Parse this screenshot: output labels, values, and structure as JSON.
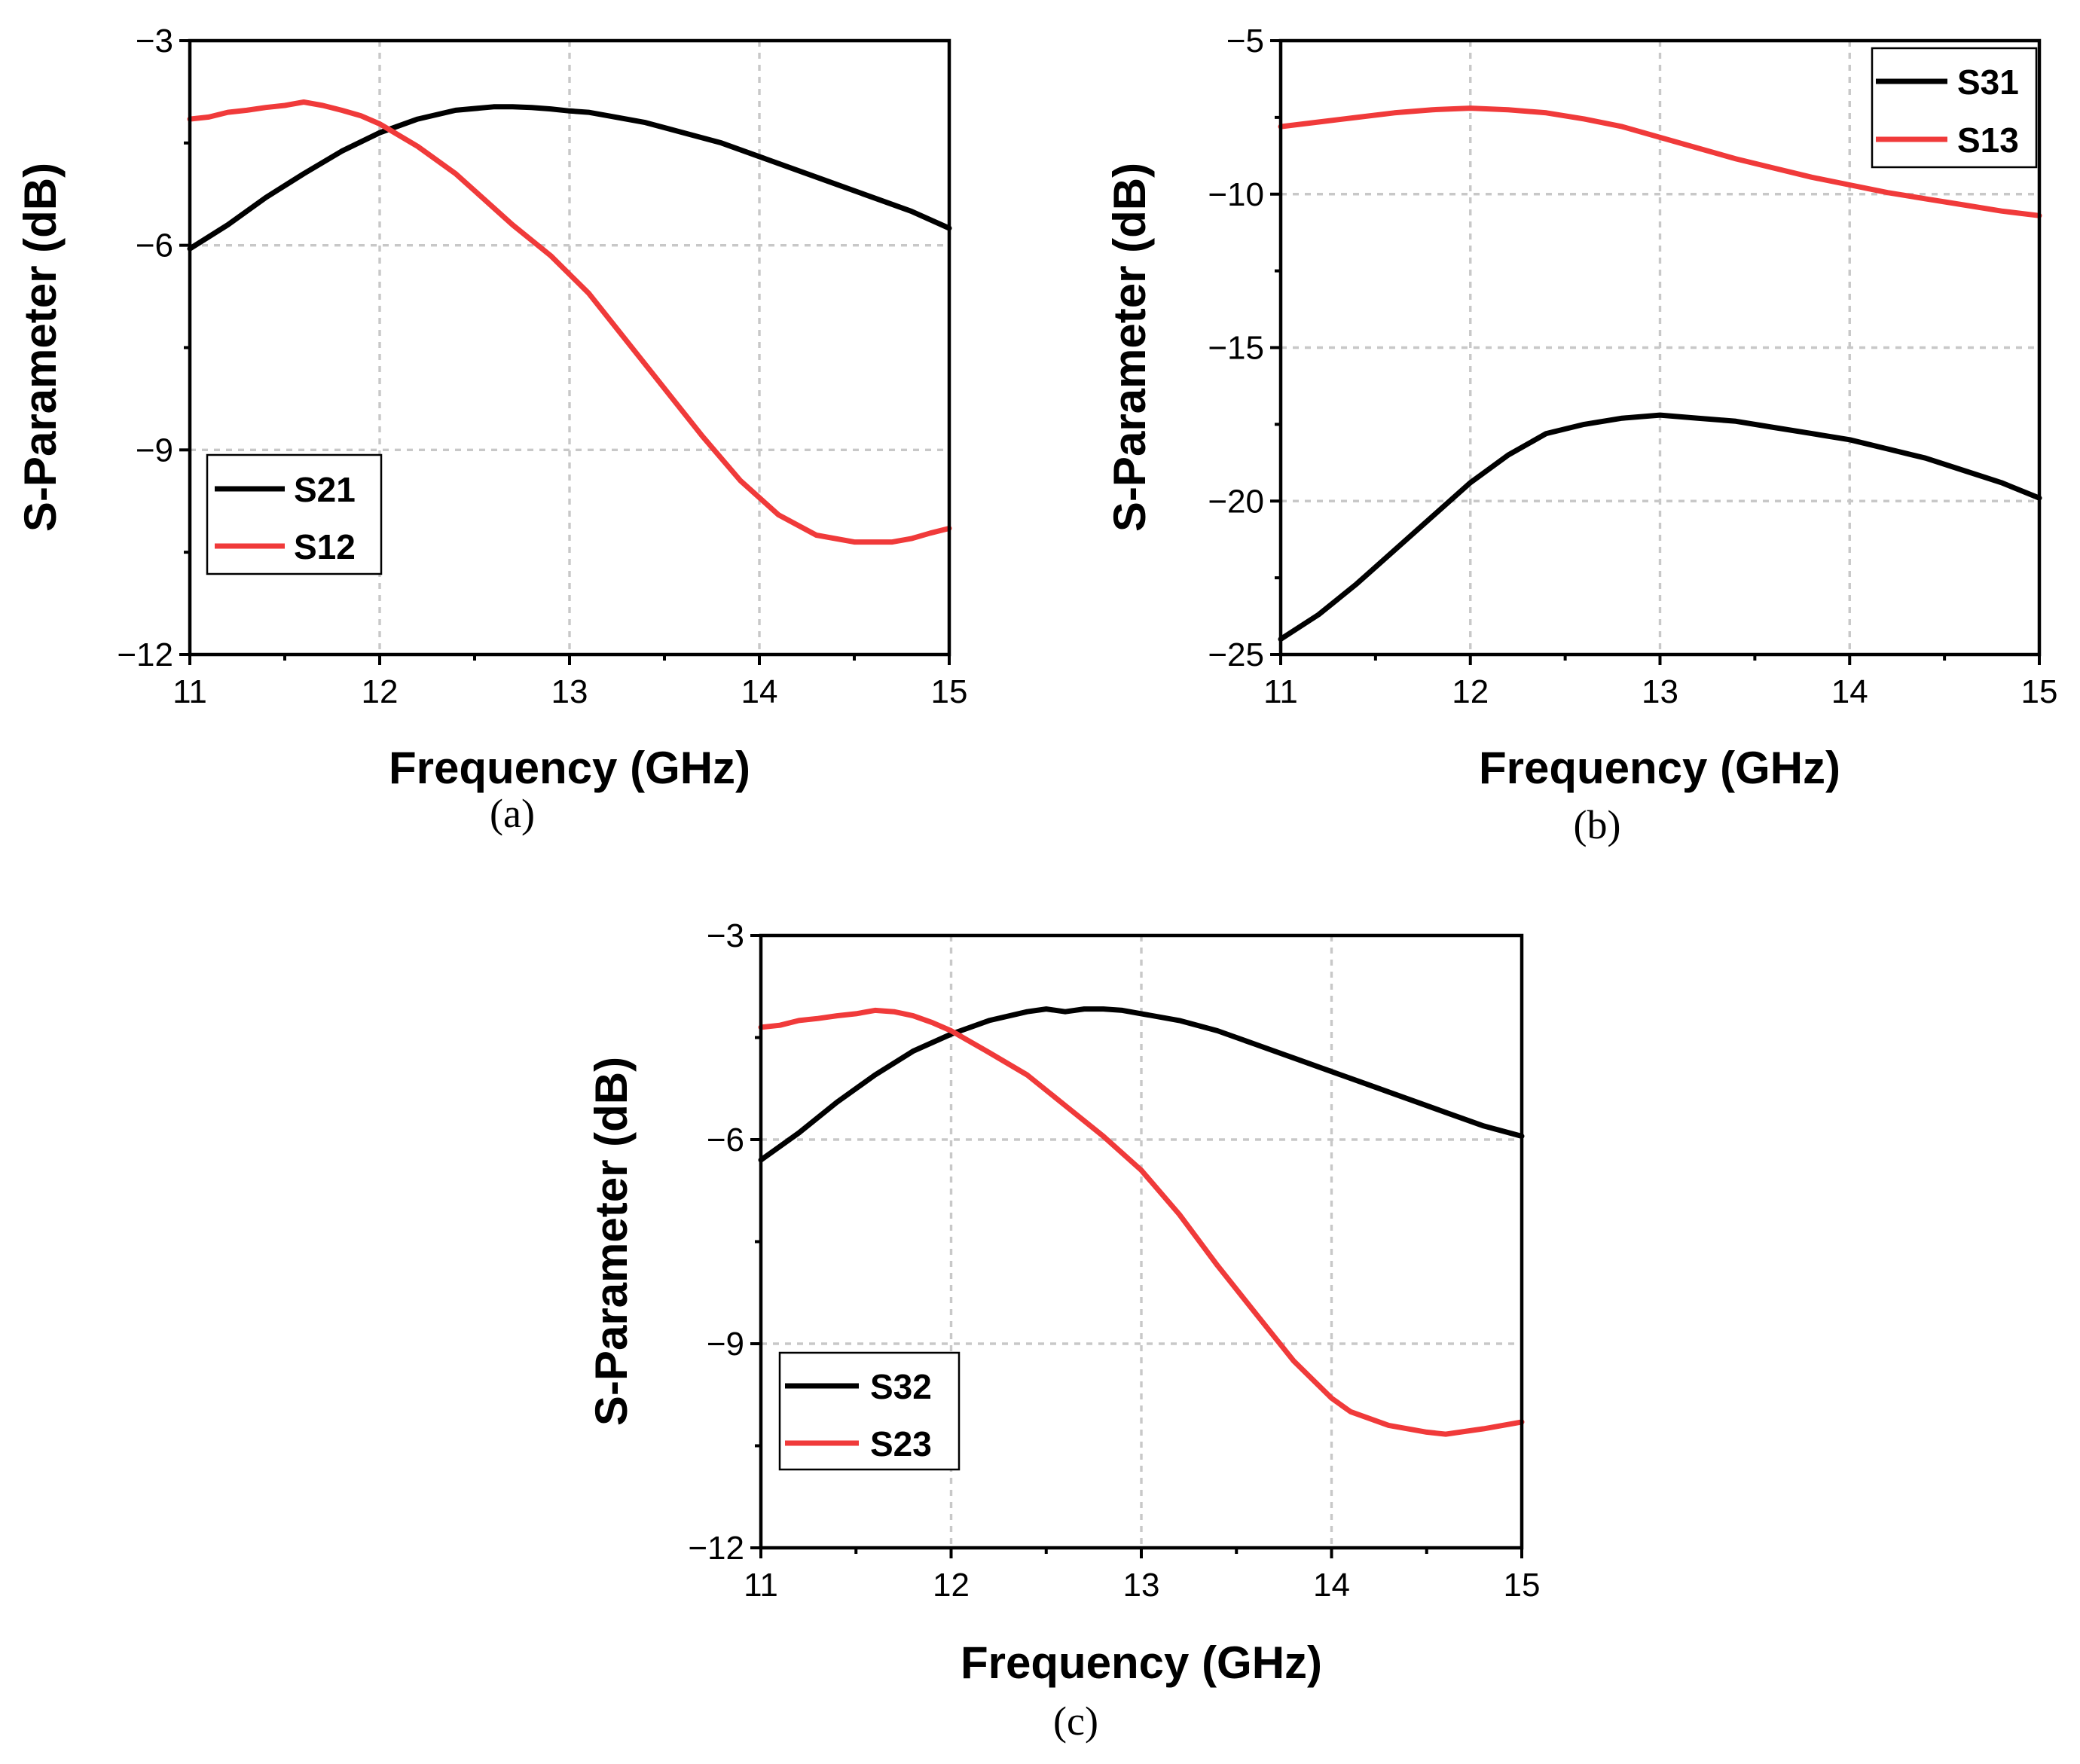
{
  "colors": {
    "series_black": "#000000",
    "series_red": "#f03a3a",
    "grid": "#c8c8c8"
  },
  "chart_data": [
    {
      "type": "line",
      "caption": "(a)",
      "xlabel": "Frequency (GHz)",
      "ylabel": "S-Parameter (dB)",
      "xlim": [
        11,
        15
      ],
      "ylim": [
        -12,
        -3
      ],
      "xticks": [
        11,
        12,
        13,
        14,
        15
      ],
      "yticks": [
        -12,
        -9,
        -6,
        -3
      ],
      "ytick_labels": [
        "−12",
        "−9",
        "−6",
        "−3"
      ],
      "grid": true,
      "legend_position": "bottom-left",
      "series": [
        {
          "name": "S21",
          "color": "#000000",
          "x": [
            11,
            11.2,
            11.4,
            11.6,
            11.8,
            12,
            12.2,
            12.4,
            12.6,
            12.7,
            12.8,
            12.9,
            13,
            13.1,
            13.2,
            13.4,
            13.6,
            13.8,
            14,
            14.2,
            14.4,
            14.6,
            14.8,
            15
          ],
          "y": [
            -6.05,
            -5.7,
            -5.3,
            -4.95,
            -4.62,
            -4.35,
            -4.15,
            -4.02,
            -3.97,
            -3.97,
            -3.98,
            -4.0,
            -4.03,
            -4.05,
            -4.1,
            -4.2,
            -4.35,
            -4.5,
            -4.7,
            -4.9,
            -5.1,
            -5.3,
            -5.5,
            -5.75
          ]
        },
        {
          "name": "S12",
          "color": "#f03a3a",
          "x": [
            11,
            11.1,
            11.2,
            11.3,
            11.4,
            11.5,
            11.6,
            11.7,
            11.8,
            11.9,
            12,
            12.2,
            12.4,
            12.5,
            12.6,
            12.7,
            12.9,
            13.1,
            13.3,
            13.5,
            13.7,
            13.9,
            14.1,
            14.3,
            14.5,
            14.7,
            14.8,
            14.9,
            15
          ],
          "y": [
            -4.15,
            -4.12,
            -4.05,
            -4.02,
            -3.98,
            -3.95,
            -3.9,
            -3.95,
            -4.02,
            -4.1,
            -4.22,
            -4.55,
            -4.95,
            -5.2,
            -5.45,
            -5.7,
            -6.15,
            -6.7,
            -7.4,
            -8.1,
            -8.8,
            -9.45,
            -9.95,
            -10.25,
            -10.35,
            -10.35,
            -10.3,
            -10.22,
            -10.15
          ]
        }
      ]
    },
    {
      "type": "line",
      "caption": "(b)",
      "xlabel": "Frequency (GHz)",
      "ylabel": "S-Parameter (dB)",
      "xlim": [
        11,
        15
      ],
      "ylim": [
        -25,
        -5
      ],
      "xticks": [
        11,
        12,
        13,
        14,
        15
      ],
      "yticks": [
        -25,
        -20,
        -15,
        -10,
        -5
      ],
      "ytick_labels": [
        "−25",
        "−20",
        "−15",
        "−10",
        "−5"
      ],
      "grid": true,
      "legend_position": "top-right",
      "series": [
        {
          "name": "S31",
          "color": "#000000",
          "x": [
            11,
            11.2,
            11.4,
            11.6,
            11.8,
            12,
            12.2,
            12.4,
            12.6,
            12.8,
            13,
            13.2,
            13.4,
            13.6,
            13.8,
            14,
            14.2,
            14.4,
            14.6,
            14.8,
            15
          ],
          "y": [
            -24.5,
            -23.7,
            -22.7,
            -21.6,
            -20.5,
            -19.4,
            -18.5,
            -17.8,
            -17.5,
            -17.3,
            -17.2,
            -17.3,
            -17.4,
            -17.6,
            -17.8,
            -18.0,
            -18.3,
            -18.6,
            -19.0,
            -19.4,
            -19.9
          ]
        },
        {
          "name": "S13",
          "color": "#f03a3a",
          "x": [
            11,
            11.2,
            11.4,
            11.6,
            11.8,
            12,
            12.2,
            12.4,
            12.6,
            12.8,
            13,
            13.2,
            13.4,
            13.6,
            13.8,
            14,
            14.2,
            14.4,
            14.6,
            14.8,
            15
          ],
          "y": [
            -7.8,
            -7.65,
            -7.5,
            -7.35,
            -7.25,
            -7.2,
            -7.25,
            -7.35,
            -7.55,
            -7.8,
            -8.15,
            -8.5,
            -8.85,
            -9.15,
            -9.45,
            -9.7,
            -9.95,
            -10.15,
            -10.35,
            -10.55,
            -10.7
          ]
        }
      ]
    },
    {
      "type": "line",
      "caption": "(c)",
      "xlabel": "Frequency (GHz)",
      "ylabel": "S-Parameter (dB)",
      "xlim": [
        11,
        15
      ],
      "ylim": [
        -12,
        -3
      ],
      "xticks": [
        11,
        12,
        13,
        14,
        15
      ],
      "yticks": [
        -12,
        -9,
        -6,
        -3
      ],
      "ytick_labels": [
        "−12",
        "−9",
        "−6",
        "−3"
      ],
      "grid": true,
      "legend_position": "bottom-left",
      "series": [
        {
          "name": "S32",
          "color": "#000000",
          "x": [
            11,
            11.2,
            11.4,
            11.6,
            11.8,
            12,
            12.2,
            12.4,
            12.5,
            12.6,
            12.7,
            12.8,
            12.9,
            13,
            13.2,
            13.4,
            13.6,
            13.8,
            14,
            14.2,
            14.4,
            14.6,
            14.8,
            15
          ],
          "y": [
            -6.3,
            -5.9,
            -5.45,
            -5.05,
            -4.7,
            -4.45,
            -4.25,
            -4.12,
            -4.08,
            -4.12,
            -4.08,
            -4.08,
            -4.1,
            -4.15,
            -4.25,
            -4.4,
            -4.6,
            -4.8,
            -5.0,
            -5.2,
            -5.4,
            -5.6,
            -5.8,
            -5.95
          ]
        },
        {
          "name": "S23",
          "color": "#f03a3a",
          "x": [
            11,
            11.1,
            11.2,
            11.3,
            11.4,
            11.5,
            11.6,
            11.7,
            11.8,
            11.9,
            12,
            12.2,
            12.4,
            12.6,
            12.8,
            13,
            13.2,
            13.4,
            13.6,
            13.8,
            14,
            14.1,
            14.3,
            14.5,
            14.6,
            14.8,
            15
          ],
          "y": [
            -4.35,
            -4.32,
            -4.25,
            -4.22,
            -4.18,
            -4.15,
            -4.1,
            -4.12,
            -4.18,
            -4.28,
            -4.4,
            -4.72,
            -5.05,
            -5.5,
            -5.95,
            -6.45,
            -7.1,
            -7.85,
            -8.55,
            -9.25,
            -9.8,
            -10.0,
            -10.2,
            -10.3,
            -10.33,
            -10.25,
            -10.15
          ]
        }
      ]
    }
  ]
}
